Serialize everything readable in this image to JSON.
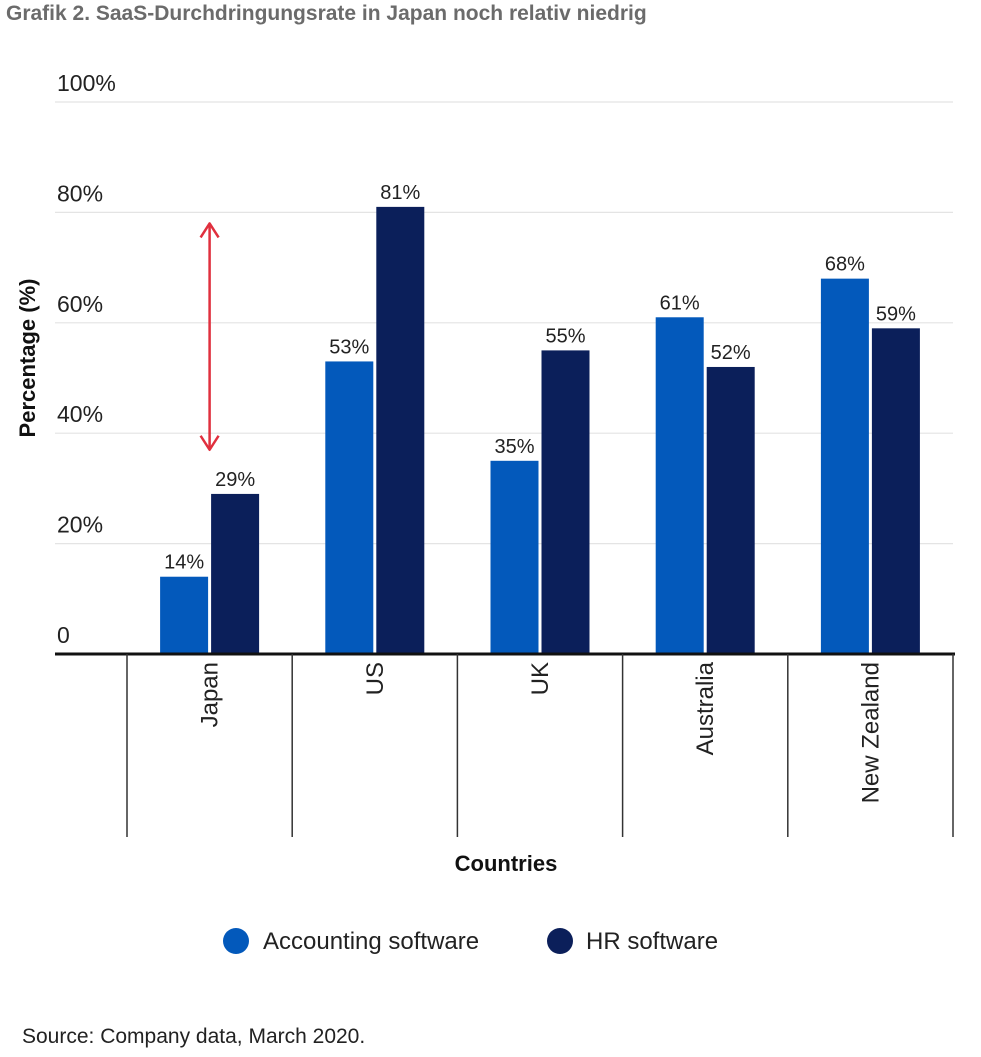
{
  "title": "Grafik 2. SaaS-Durchdringungsrate in Japan noch relativ niedrig",
  "source": "Source: Company data, March 2020.",
  "colors": {
    "accounting": "#0359bb",
    "hr": "#0b1f5a",
    "arrow": "#e0303e"
  },
  "chart_data": {
    "type": "bar",
    "title": "",
    "xlabel": "Countries",
    "ylabel": "Percentage (%)",
    "ylim": [
      0,
      100
    ],
    "yticks": [
      0,
      20,
      40,
      60,
      80,
      100
    ],
    "ytick_labels": [
      "0",
      "20%",
      "40%",
      "60%",
      "80%",
      "100%"
    ],
    "categories": [
      "Japan",
      "US",
      "UK",
      "Australia",
      "New Zealand"
    ],
    "series": [
      {
        "name": "Accounting software",
        "values": [
          14,
          53,
          35,
          61,
          68
        ],
        "labels": [
          "14%",
          "53%",
          "35%",
          "61%",
          "68%"
        ]
      },
      {
        "name": "HR software",
        "values": [
          29,
          81,
          55,
          52,
          59
        ],
        "labels": [
          "29%",
          "81%",
          "55%",
          "52%",
          "59%"
        ]
      }
    ],
    "annotation": {
      "type": "double-arrow",
      "category": "Japan",
      "from": 37,
      "to": 78
    }
  }
}
